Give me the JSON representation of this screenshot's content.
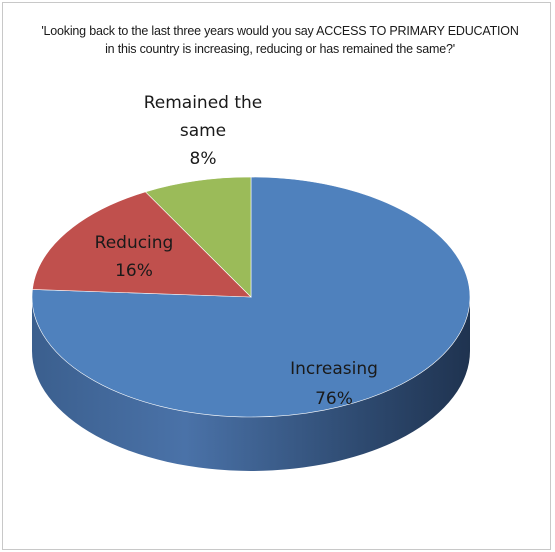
{
  "chart_data": {
    "type": "pie",
    "title": "'Looking back to the last three years would you say  ACCESS TO PRIMARY EDUCATION in this country is increasing, reducing or has remained the same?'",
    "categories": [
      "Increasing",
      "Reducing",
      "Remained the same"
    ],
    "values": [
      76,
      16,
      8
    ],
    "value_labels": [
      "76%",
      "16%",
      "8%"
    ],
    "colors": [
      "#4f81bd",
      "#c0504d",
      "#9bbb59"
    ],
    "side_colors": [
      "#3a5f8f",
      "#8e3a38",
      "#74903f"
    ],
    "style": "3d-pie",
    "legend": "none"
  }
}
